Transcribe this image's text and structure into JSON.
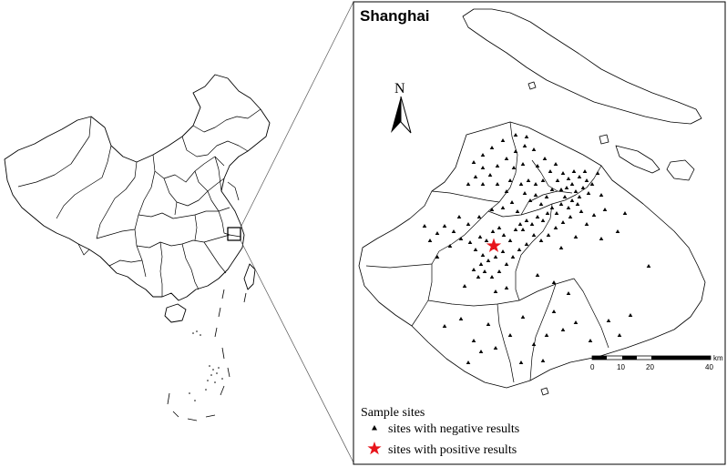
{
  "inset": {
    "title": "Shanghai",
    "north_label": "N"
  },
  "scale_bar": {
    "unit": "km",
    "ticks": [
      "0",
      "10",
      "20",
      "40"
    ]
  },
  "legend": {
    "title": "Sample sites",
    "items": [
      {
        "label": "sites with negative results",
        "symbol": "triangle-icon",
        "color": "#000000"
      },
      {
        "label": "sites with positive results",
        "symbol": "star-icon",
        "color": "#e8141b"
      }
    ]
  },
  "colors": {
    "outline": "#000000",
    "background": "#ffffff",
    "positive": "#e8141b"
  }
}
